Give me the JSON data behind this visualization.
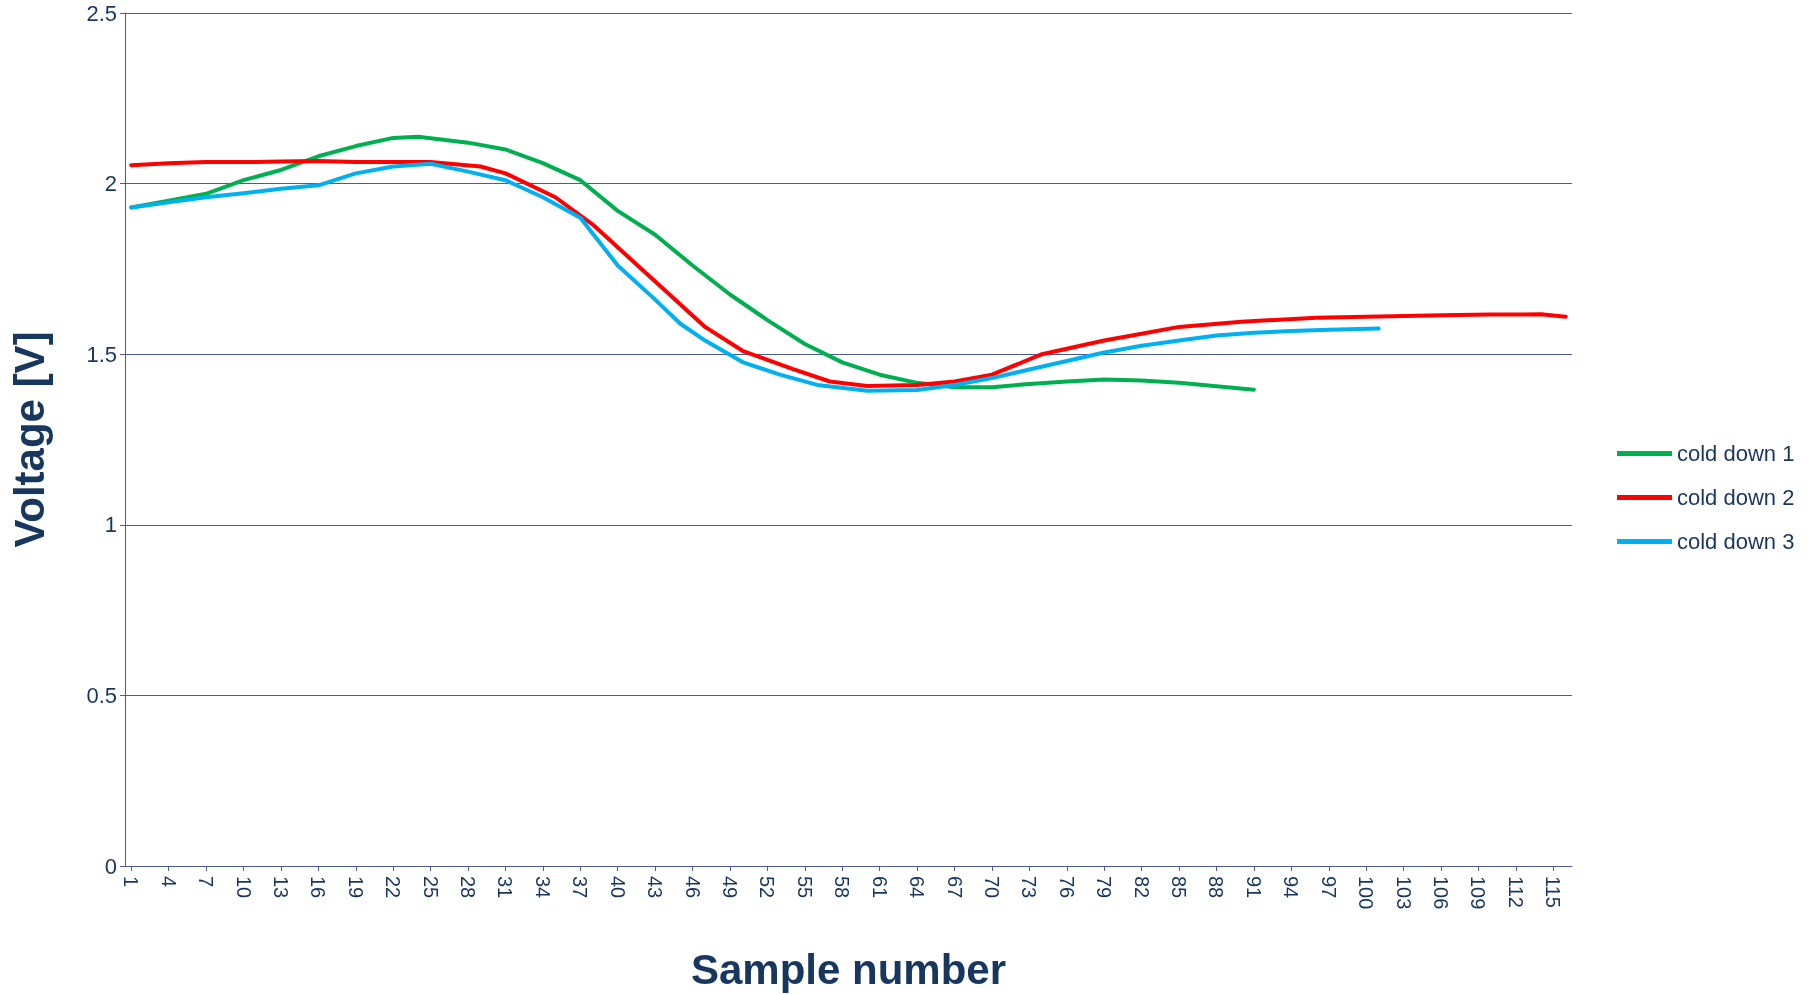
{
  "chart_data": {
    "type": "line",
    "xlabel": "Sample number",
    "ylabel": "Voltage [V]",
    "xlim": [
      0.5,
      116.5
    ],
    "xticks": [
      1,
      4,
      7,
      10,
      13,
      16,
      19,
      22,
      25,
      28,
      31,
      34,
      37,
      40,
      43,
      46,
      49,
      52,
      55,
      58,
      61,
      64,
      67,
      70,
      73,
      76,
      79,
      82,
      85,
      88,
      91,
      94,
      97,
      100,
      103,
      106,
      109,
      112,
      115
    ],
    "ylim": [
      0,
      2.5
    ],
    "yticks": [
      0,
      0.5,
      1,
      1.5,
      2,
      2.5
    ],
    "grid": "y",
    "legend": "right",
    "marker": "none",
    "line_style": "solid",
    "series": [
      {
        "name": "cold down 1",
        "color": "#00b050",
        "x": [
          1,
          4,
          7,
          10,
          13,
          16,
          19,
          22,
          24,
          28,
          31,
          34,
          37,
          40,
          43,
          46,
          49,
          52,
          55,
          58,
          61,
          64,
          67,
          70,
          73,
          76,
          79,
          82,
          85,
          88,
          91
        ],
        "values": [
          1.93,
          1.95,
          1.97,
          2.01,
          2.04,
          2.08,
          2.11,
          2.134,
          2.137,
          2.12,
          2.1,
          2.06,
          2.01,
          1.92,
          1.85,
          1.76,
          1.675,
          1.6,
          1.53,
          1.476,
          1.44,
          1.416,
          1.403,
          1.403,
          1.413,
          1.42,
          1.426,
          1.423,
          1.416,
          1.406,
          1.396
        ]
      },
      {
        "name": "cold down 2",
        "color": "#ff0000",
        "x": [
          1,
          4,
          7,
          10,
          13,
          16,
          19,
          22,
          25,
          29,
          31,
          35,
          38,
          41,
          44,
          47,
          50,
          54,
          57,
          60,
          64,
          67,
          70,
          74,
          79,
          82,
          85,
          90,
          96,
          100,
          106,
          110,
          114,
          116
        ],
        "values": [
          2.054,
          2.06,
          2.063,
          2.063,
          2.065,
          2.066,
          2.063,
          2.063,
          2.063,
          2.05,
          2.03,
          1.96,
          1.88,
          1.78,
          1.68,
          1.58,
          1.51,
          1.457,
          1.42,
          1.407,
          1.41,
          1.42,
          1.44,
          1.5,
          1.54,
          1.56,
          1.58,
          1.595,
          1.607,
          1.61,
          1.614,
          1.616,
          1.617,
          1.61
        ]
      },
      {
        "name": "cold down 3",
        "color": "#00b0f0",
        "x": [
          1,
          4,
          7,
          10,
          13,
          16,
          19,
          22,
          25,
          28,
          31,
          34,
          37,
          40,
          43,
          45,
          47,
          50,
          53,
          56,
          60,
          64,
          67,
          70,
          73,
          76,
          79,
          82,
          85,
          88,
          91,
          94,
          97,
          101
        ],
        "values": [
          1.93,
          1.945,
          1.96,
          1.972,
          1.985,
          1.995,
          2.03,
          2.05,
          2.058,
          2.035,
          2.01,
          1.96,
          1.9,
          1.76,
          1.66,
          1.59,
          1.54,
          1.477,
          1.44,
          1.41,
          1.393,
          1.395,
          1.41,
          1.43,
          1.455,
          1.48,
          1.505,
          1.525,
          1.54,
          1.555,
          1.563,
          1.568,
          1.572,
          1.575
        ]
      }
    ]
  }
}
